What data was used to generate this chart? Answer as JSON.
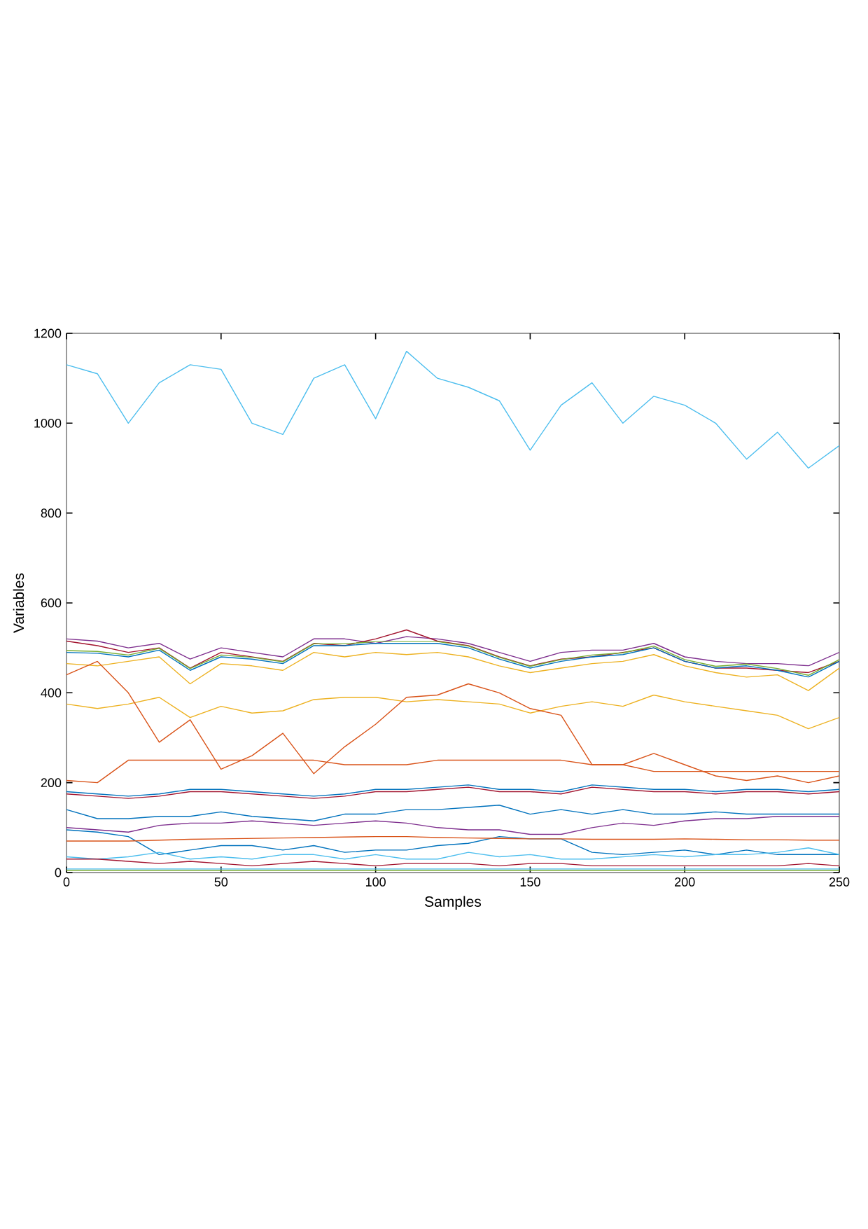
{
  "chart_data": {
    "type": "line",
    "xlabel": "Samples",
    "ylabel": "Variables",
    "x": [
      0,
      10,
      20,
      30,
      40,
      50,
      60,
      70,
      80,
      90,
      100,
      110,
      120,
      130,
      140,
      150,
      160,
      170,
      180,
      190,
      200,
      210,
      220,
      230,
      240,
      250
    ],
    "xlim": [
      0,
      250
    ],
    "xticks": [
      0,
      50,
      100,
      150,
      200,
      250
    ],
    "ylim": [
      0,
      1200
    ],
    "yticks": [
      0,
      200,
      400,
      600,
      800,
      1000,
      1200
    ],
    "series": [
      {
        "color": "#4dbeee",
        "values": [
          1130,
          1110,
          1000,
          1090,
          1130,
          1120,
          1000,
          975,
          1100,
          1130,
          1010,
          1160,
          1100,
          1080,
          1050,
          940,
          1040,
          1090,
          1000,
          1060,
          1040,
          1000,
          920,
          980,
          900,
          950
        ]
      },
      {
        "color": "#7e2f8e",
        "values": [
          520,
          515,
          500,
          510,
          475,
          500,
          490,
          480,
          520,
          520,
          510,
          525,
          520,
          510,
          490,
          470,
          490,
          495,
          495,
          510,
          480,
          470,
          465,
          465,
          460,
          490
        ]
      },
      {
        "color": "#a2142f",
        "values": [
          515,
          505,
          490,
          500,
          455,
          490,
          480,
          470,
          510,
          505,
          520,
          540,
          515,
          505,
          480,
          460,
          475,
          480,
          490,
          500,
          470,
          455,
          455,
          450,
          445,
          470
        ]
      },
      {
        "color": "#77ac30",
        "values": [
          494,
          492,
          484,
          499,
          454,
          484,
          479,
          469,
          509,
          509,
          514,
          514,
          514,
          504,
          479,
          459,
          474,
          484,
          489,
          504,
          474,
          459,
          464,
          454,
          439,
          474
        ]
      },
      {
        "color": "#0072bd",
        "values": [
          490,
          488,
          480,
          495,
          450,
          480,
          475,
          465,
          505,
          505,
          510,
          510,
          510,
          500,
          475,
          455,
          470,
          480,
          485,
          500,
          470,
          455,
          460,
          450,
          435,
          470
        ]
      },
      {
        "color": "#edb120",
        "values": [
          465,
          460,
          470,
          480,
          420,
          465,
          460,
          450,
          490,
          480,
          490,
          485,
          490,
          480,
          460,
          445,
          455,
          465,
          470,
          485,
          460,
          445,
          435,
          440,
          405,
          455
        ]
      },
      {
        "color": "#edb120",
        "values": [
          375,
          365,
          375,
          390,
          345,
          370,
          355,
          360,
          385,
          390,
          390,
          380,
          385,
          380,
          375,
          355,
          370,
          380,
          370,
          395,
          380,
          370,
          360,
          350,
          320,
          345
        ]
      },
      {
        "color": "#d95319",
        "values": [
          440,
          470,
          400,
          290,
          340,
          230,
          260,
          310,
          220,
          280,
          330,
          390,
          395,
          420,
          400,
          365,
          350,
          240,
          240,
          265,
          240,
          215,
          205,
          215,
          200,
          215
        ]
      },
      {
        "color": "#d95319",
        "values": [
          205,
          200,
          250,
          250,
          250,
          250,
          250,
          250,
          250,
          240,
          240,
          240,
          250,
          250,
          250,
          250,
          250,
          240,
          240,
          225,
          225,
          225,
          225,
          225,
          225,
          225
        ]
      },
      {
        "color": "#0072bd",
        "values": [
          180,
          175,
          170,
          175,
          185,
          185,
          180,
          175,
          170,
          175,
          185,
          185,
          190,
          195,
          185,
          185,
          180,
          195,
          190,
          185,
          185,
          180,
          185,
          185,
          180,
          185
        ]
      },
      {
        "color": "#a2142f",
        "values": [
          175,
          170,
          165,
          170,
          180,
          180,
          175,
          170,
          165,
          170,
          180,
          180,
          185,
          190,
          180,
          180,
          175,
          190,
          185,
          180,
          180,
          175,
          180,
          180,
          175,
          180
        ]
      },
      {
        "color": "#0072bd",
        "values": [
          140,
          120,
          120,
          125,
          125,
          135,
          125,
          120,
          115,
          130,
          130,
          140,
          140,
          145,
          150,
          130,
          140,
          130,
          140,
          130,
          130,
          135,
          130,
          130,
          130,
          130
        ]
      },
      {
        "color": "#7e2f8e",
        "values": [
          100,
          95,
          90,
          105,
          110,
          110,
          115,
          110,
          105,
          110,
          115,
          110,
          100,
          95,
          95,
          85,
          85,
          100,
          110,
          105,
          115,
          120,
          120,
          125,
          125,
          125
        ]
      },
      {
        "color": "#0072bd",
        "values": [
          95,
          90,
          80,
          40,
          50,
          60,
          60,
          50,
          60,
          45,
          50,
          50,
          60,
          65,
          80,
          75,
          75,
          45,
          40,
          45,
          50,
          40,
          50,
          40,
          40,
          40
        ]
      },
      {
        "color": "#d95319",
        "values": [
          70,
          70,
          70,
          72,
          74,
          75,
          76,
          77,
          78,
          79,
          80,
          80,
          78,
          77,
          76,
          75,
          75,
          74,
          74,
          74,
          75,
          74,
          73,
          73,
          72,
          72
        ]
      },
      {
        "color": "#4dbeee",
        "values": [
          35,
          30,
          35,
          45,
          30,
          35,
          30,
          40,
          40,
          30,
          40,
          30,
          30,
          45,
          35,
          40,
          30,
          30,
          35,
          40,
          35,
          40,
          40,
          45,
          55,
          40
        ]
      },
      {
        "color": "#a2142f",
        "values": [
          30,
          30,
          25,
          20,
          25,
          20,
          15,
          20,
          25,
          20,
          15,
          20,
          20,
          20,
          15,
          20,
          20,
          15,
          15,
          15,
          15,
          15,
          15,
          15,
          20,
          15
        ]
      },
      {
        "color": "#4dbeee",
        "values": [
          8,
          8,
          8,
          8,
          8,
          8,
          8,
          8,
          8,
          8,
          8,
          8,
          8,
          8,
          8,
          8,
          8,
          8,
          8,
          8,
          8,
          8,
          8,
          8,
          8,
          8
        ]
      },
      {
        "color": "#77ac30",
        "values": [
          5,
          5,
          5,
          5,
          5,
          5,
          5,
          5,
          5,
          5,
          5,
          5,
          5,
          5,
          5,
          5,
          5,
          5,
          5,
          5,
          5,
          5,
          5,
          5,
          5,
          5
        ]
      }
    ]
  }
}
